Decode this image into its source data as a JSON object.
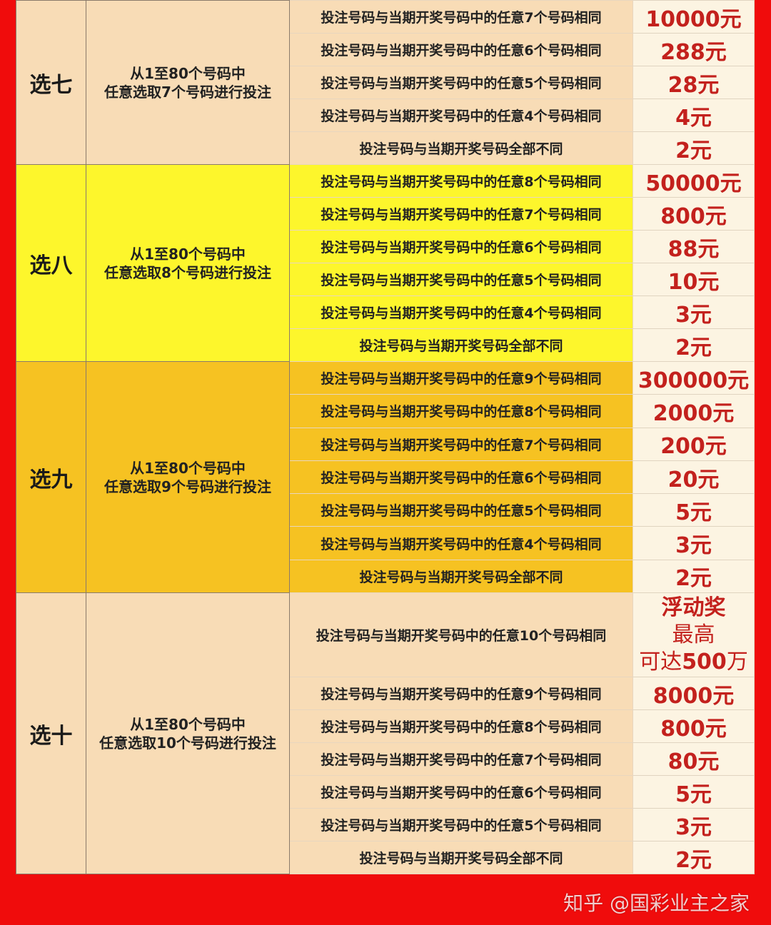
{
  "colors": {
    "border": "#f00c0c",
    "prize_text": "#c3211d"
  },
  "sections": [
    {
      "name": "选七",
      "rule": [
        "从1至80个号码中",
        "任意选取7个号码进行投注"
      ],
      "bg": "#f8dcb6",
      "rows": [
        [
          "投注号码与当期开奖号码中的任意7个号码相同",
          "10000元"
        ],
        [
          "投注号码与当期开奖号码中的任意6个号码相同",
          "288元"
        ],
        [
          "投注号码与当期开奖号码中的任意5个号码相同",
          "28元"
        ],
        [
          "投注号码与当期开奖号码中的任意4个号码相同",
          "4元"
        ],
        [
          "投注号码与当期开奖号码全部不同",
          "2元"
        ]
      ]
    },
    {
      "name": "选八",
      "rule": [
        "从1至80个号码中",
        "任意选取8个号码进行投注"
      ],
      "bg": "#fdf62c",
      "rows": [
        [
          "投注号码与当期开奖号码中的任意8个号码相同",
          "50000元"
        ],
        [
          "投注号码与当期开奖号码中的任意7个号码相同",
          "800元"
        ],
        [
          "投注号码与当期开奖号码中的任意6个号码相同",
          "88元"
        ],
        [
          "投注号码与当期开奖号码中的任意5个号码相同",
          "10元"
        ],
        [
          "投注号码与当期开奖号码中的任意4个号码相同",
          "3元"
        ],
        [
          "投注号码与当期开奖号码全部不同",
          "2元"
        ]
      ]
    },
    {
      "name": "选九",
      "rule": [
        "从1至80个号码中",
        "任意选取9个号码进行投注"
      ],
      "bg": "#f6c222",
      "rows": [
        [
          "投注号码与当期开奖号码中的任意9个号码相同",
          "300000元"
        ],
        [
          "投注号码与当期开奖号码中的任意8个号码相同",
          "2000元"
        ],
        [
          "投注号码与当期开奖号码中的任意7个号码相同",
          "200元"
        ],
        [
          "投注号码与当期开奖号码中的任意6个号码相同",
          "20元"
        ],
        [
          "投注号码与当期开奖号码中的任意5个号码相同",
          "5元"
        ],
        [
          "投注号码与当期开奖号码中的任意4个号码相同",
          "3元"
        ],
        [
          "投注号码与当期开奖号码全部不同",
          "2元"
        ]
      ]
    },
    {
      "name": "选十",
      "rule": [
        "从1至80个号码中",
        "任意选取10个号码进行投注"
      ],
      "bg": "#f8dcb6",
      "rows": [
        [
          "投注号码与当期开奖号码中的任意10个号码相同",
          "浮动奖|最高|可达|500|万"
        ],
        [
          "投注号码与当期开奖号码中的任意9个号码相同",
          "8000元"
        ],
        [
          "投注号码与当期开奖号码中的任意8个号码相同",
          "800元"
        ],
        [
          "投注号码与当期开奖号码中的任意7个号码相同",
          "80元"
        ],
        [
          "投注号码与当期开奖号码中的任意6个号码相同",
          "5元"
        ],
        [
          "投注号码与当期开奖号码中的任意5个号码相同",
          "3元"
        ],
        [
          "投注号码与当期开奖号码全部不同",
          "2元"
        ]
      ]
    }
  ],
  "watermark": "知乎 @国彩业主之家"
}
